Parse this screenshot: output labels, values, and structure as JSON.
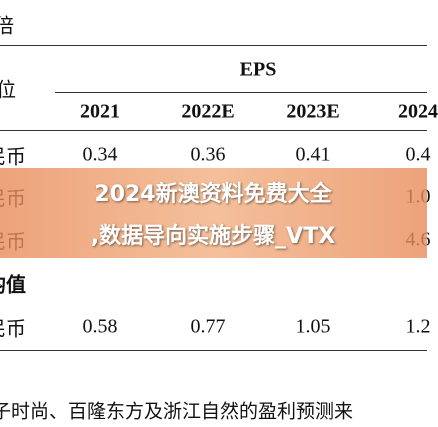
{
  "header": {
    "title": "倍",
    "unit_label": "位",
    "group_label": "EPS",
    "columns": [
      "2021",
      "2022E",
      "2023E",
      "2024"
    ]
  },
  "table": {
    "rows": [
      {
        "label": "民币",
        "cells": [
          "0.34",
          "0.36",
          "0.41",
          "0.4"
        ]
      },
      {
        "label": "民币",
        "cells": [
          null,
          null,
          null,
          "1.0"
        ]
      },
      {
        "label": "民币",
        "cells": [
          null,
          null,
          null,
          "4.6"
        ]
      },
      {
        "label": "均值",
        "cells": [
          null,
          null,
          null,
          null
        ]
      },
      {
        "label": "民币",
        "cells": [
          "0.58",
          "0.77",
          "1.05",
          "1.2"
        ]
      }
    ]
  },
  "footer": {
    "note": "子时尚、百隆东方及浙江自然的盈利预测来"
  },
  "overlay": {
    "lines": [
      "2024新澳资料免费大全",
      ",数据导向实施步骤_VTX"
    ]
  }
}
